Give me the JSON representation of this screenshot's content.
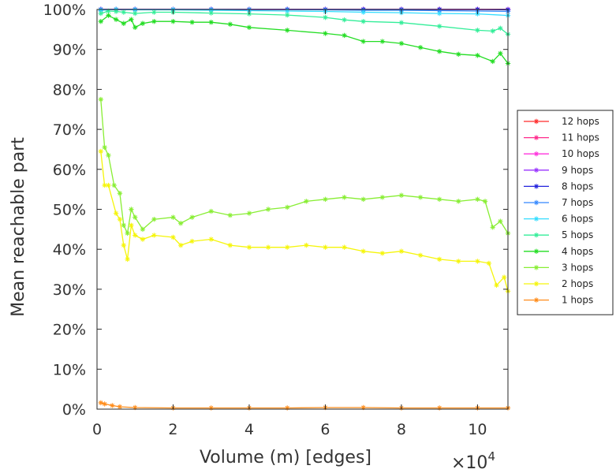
{
  "chart_data": {
    "type": "line",
    "title": "",
    "xlabel": "Volume (m) [edges]",
    "ylabel": "Mean reachable part",
    "x_multiplier_label": "×10",
    "x_multiplier_exp": "4",
    "xlim": [
      0,
      10.8
    ],
    "ylim": [
      0,
      100
    ],
    "x_ticks": [
      0,
      2,
      4,
      6,
      8,
      10
    ],
    "x_tick_labels": [
      "0",
      "2",
      "4",
      "6",
      "8",
      "10"
    ],
    "y_ticks": [
      0,
      10,
      20,
      30,
      40,
      50,
      60,
      70,
      80,
      90,
      100
    ],
    "y_tick_labels": [
      "0%",
      "10%",
      "20%",
      "30%",
      "40%",
      "50%",
      "60%",
      "70%",
      "80%",
      "90%",
      "100%"
    ],
    "legend_position": "right",
    "series": [
      {
        "name": "12 hops",
        "color": "#ff2a2a",
        "x": [
          0.1,
          0.5,
          1,
          2,
          3,
          4,
          5,
          6,
          7,
          8,
          9,
          10,
          10.8
        ],
        "values": [
          100,
          100,
          100,
          100,
          100,
          100,
          100,
          100,
          100,
          100,
          100,
          100,
          100
        ]
      },
      {
        "name": "11 hops",
        "color": "#ff2a8c",
        "x": [
          0.1,
          0.5,
          1,
          2,
          3,
          4,
          5,
          6,
          7,
          8,
          9,
          10,
          10.8
        ],
        "values": [
          100,
          100,
          100,
          100,
          100,
          100,
          100,
          100,
          100,
          100,
          100,
          100,
          100
        ]
      },
      {
        "name": "10 hops",
        "color": "#ff33dd",
        "x": [
          0.1,
          0.5,
          1,
          2,
          3,
          4,
          5,
          6,
          7,
          8,
          9,
          10,
          10.8
        ],
        "values": [
          100,
          100,
          100,
          100,
          100,
          100,
          100,
          100,
          100,
          100,
          100,
          100,
          100
        ]
      },
      {
        "name": "9 hops",
        "color": "#9933ff",
        "x": [
          0.1,
          0.5,
          1,
          2,
          3,
          4,
          5,
          6,
          7,
          8,
          9,
          10,
          10.8
        ],
        "values": [
          100,
          100,
          100,
          100,
          100,
          100,
          100,
          100,
          100,
          100,
          100,
          100,
          100
        ]
      },
      {
        "name": "8 hops",
        "color": "#2222dd",
        "x": [
          0.1,
          0.5,
          1,
          2,
          3,
          4,
          5,
          6,
          7,
          8,
          9,
          10,
          10.8
        ],
        "values": [
          100,
          100,
          100,
          100,
          100,
          100,
          100,
          100,
          100,
          100,
          100,
          100,
          99.9
        ]
      },
      {
        "name": "7 hops",
        "color": "#3388ff",
        "x": [
          0.1,
          0.5,
          1,
          2,
          3,
          4,
          5,
          6,
          7,
          8,
          9,
          10,
          10.8
        ],
        "values": [
          100,
          100,
          100,
          100,
          100,
          100,
          100,
          99.9,
          99.8,
          99.8,
          99.7,
          99.6,
          99.5
        ]
      },
      {
        "name": "6 hops",
        "color": "#33ddff",
        "x": [
          0.1,
          0.5,
          1,
          2,
          3,
          4,
          5,
          6,
          7,
          8,
          9,
          10,
          10.8
        ],
        "values": [
          99.8,
          100,
          99.9,
          99.9,
          99.8,
          99.7,
          99.6,
          99.5,
          99.3,
          99.2,
          99.0,
          98.9,
          98.5
        ]
      },
      {
        "name": "5 hops",
        "color": "#33ee99",
        "x": [
          0.1,
          0.3,
          0.5,
          0.7,
          1.0,
          1.5,
          2,
          3,
          4,
          5,
          6,
          6.5,
          7,
          8,
          9,
          10,
          10.4,
          10.6,
          10.8
        ],
        "values": [
          99.0,
          99.6,
          99.5,
          99.3,
          99.0,
          99.3,
          99.3,
          99.1,
          98.9,
          98.6,
          98.0,
          97.4,
          97.0,
          96.7,
          95.8,
          94.8,
          94.6,
          95.3,
          93.8
        ]
      },
      {
        "name": "4 hops",
        "color": "#22dd22",
        "x": [
          0.1,
          0.3,
          0.5,
          0.7,
          0.9,
          1.0,
          1.2,
          1.5,
          2,
          2.5,
          3,
          3.5,
          4,
          5,
          6,
          6.5,
          7,
          7.5,
          8,
          8.5,
          9,
          9.5,
          10,
          10.4,
          10.6,
          10.8
        ],
        "values": [
          97.0,
          98.5,
          97.5,
          96.5,
          97.5,
          95.5,
          96.5,
          97.0,
          97.0,
          96.8,
          96.8,
          96.3,
          95.5,
          94.8,
          94.0,
          93.5,
          92.0,
          92.0,
          91.5,
          90.5,
          89.5,
          88.8,
          88.5,
          87.0,
          89.0,
          86.5
        ]
      },
      {
        "name": "3 hops",
        "color": "#88ee33",
        "x": [
          0.1,
          0.2,
          0.3,
          0.45,
          0.6,
          0.7,
          0.8,
          0.9,
          1.0,
          1.2,
          1.5,
          2.0,
          2.2,
          2.5,
          3.0,
          3.5,
          4.0,
          4.5,
          5.0,
          5.5,
          6.0,
          6.5,
          7.0,
          7.5,
          8.0,
          8.5,
          9.0,
          9.5,
          10.0,
          10.2,
          10.4,
          10.6,
          10.8
        ],
        "values": [
          77.5,
          65.5,
          63.5,
          56.0,
          54.0,
          46.0,
          44.0,
          50.0,
          48.0,
          45.0,
          47.5,
          48.0,
          46.5,
          48.0,
          49.5,
          48.5,
          49.0,
          50.0,
          50.5,
          52.0,
          52.5,
          53.0,
          52.5,
          53.0,
          53.5,
          53.0,
          52.5,
          52.0,
          52.5,
          52.0,
          45.5,
          47.0,
          44.0
        ]
      },
      {
        "name": "2 hops",
        "color": "#f5f50a",
        "x": [
          0.1,
          0.2,
          0.3,
          0.5,
          0.6,
          0.7,
          0.8,
          0.9,
          1.0,
          1.2,
          1.5,
          2.0,
          2.2,
          2.5,
          3.0,
          3.5,
          4.0,
          4.5,
          5.0,
          5.5,
          6.0,
          6.5,
          7.0,
          7.5,
          8.0,
          8.5,
          9.0,
          9.5,
          10.0,
          10.3,
          10.5,
          10.7,
          10.8
        ],
        "values": [
          64.5,
          56.0,
          56.0,
          49.0,
          47.5,
          41.0,
          37.5,
          46.0,
          43.5,
          42.5,
          43.5,
          43.0,
          41.0,
          42.0,
          42.5,
          41.0,
          40.5,
          40.5,
          40.5,
          41.0,
          40.5,
          40.5,
          39.5,
          39.0,
          39.5,
          38.5,
          37.5,
          37.0,
          37.0,
          36.5,
          31.0,
          33.0,
          29.5
        ]
      },
      {
        "name": "1 hops",
        "color": "#ff8c1a",
        "x": [
          0.1,
          0.2,
          0.4,
          0.6,
          1.0,
          2,
          3,
          4,
          5,
          6,
          7,
          8,
          9,
          10,
          10.8
        ],
        "values": [
          1.6,
          1.3,
          0.9,
          0.6,
          0.4,
          0.3,
          0.3,
          0.3,
          0.3,
          0.4,
          0.4,
          0.3,
          0.3,
          0.3,
          0.3
        ]
      }
    ]
  }
}
